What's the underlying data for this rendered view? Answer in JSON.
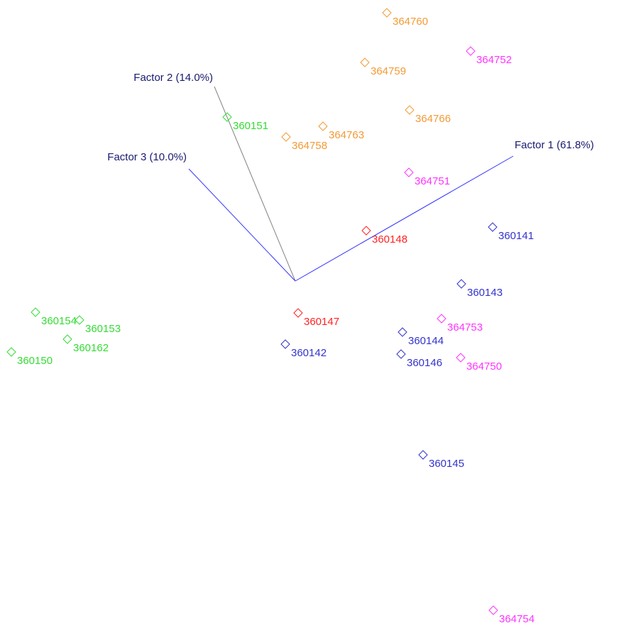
{
  "axes": [
    {
      "label": "Factor 1 (61.8%)",
      "color": "#3333ff"
    },
    {
      "label": "Factor 2 (14.0%)",
      "color": "#808080"
    },
    {
      "label": "Factor 3 (10.0%)",
      "color": "#3333ff"
    }
  ],
  "points": [
    {
      "label": "364760",
      "color": "#f39a35"
    },
    {
      "label": "364752",
      "color": "#ff33ff"
    },
    {
      "label": "364759",
      "color": "#f39a35"
    },
    {
      "label": "364766",
      "color": "#f39a35"
    },
    {
      "label": "360151",
      "color": "#33dd33"
    },
    {
      "label": "364763",
      "color": "#f39a35"
    },
    {
      "label": "364758",
      "color": "#f39a35"
    },
    {
      "label": "364751",
      "color": "#ff33ff"
    },
    {
      "label": "360148",
      "color": "#ff2222"
    },
    {
      "label": "360141",
      "color": "#3333cc"
    },
    {
      "label": "360143",
      "color": "#3333cc"
    },
    {
      "label": "360154",
      "color": "#33dd33"
    },
    {
      "label": "360153",
      "color": "#33dd33"
    },
    {
      "label": "360147",
      "color": "#ff2222"
    },
    {
      "label": "364753",
      "color": "#ff33ff"
    },
    {
      "label": "360144",
      "color": "#3333cc"
    },
    {
      "label": "360162",
      "color": "#33dd33"
    },
    {
      "label": "360142",
      "color": "#3333cc"
    },
    {
      "label": "360146",
      "color": "#3333cc"
    },
    {
      "label": "364750",
      "color": "#ff33ff"
    },
    {
      "label": "360150",
      "color": "#33dd33"
    },
    {
      "label": "360145",
      "color": "#3333cc"
    },
    {
      "label": "364754",
      "color": "#ff33ff"
    }
  ]
}
